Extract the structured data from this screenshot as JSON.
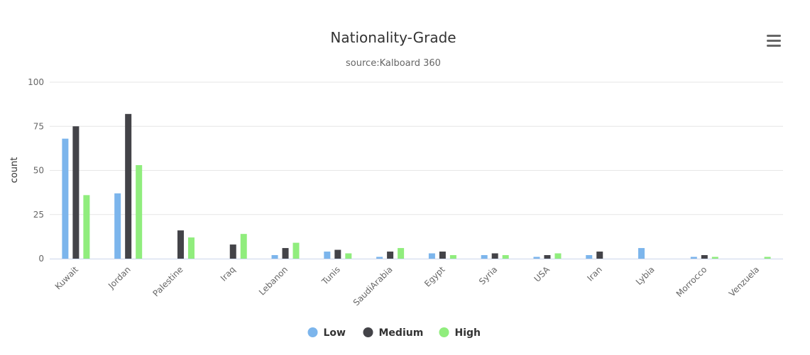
{
  "chart_data": {
    "type": "bar",
    "title": "Nationality-Grade",
    "subtitle": "source:Kalboard 360",
    "xlabel": "",
    "ylabel": "count",
    "ylim": [
      0,
      100
    ],
    "yticks": [
      0,
      25,
      50,
      75,
      100
    ],
    "grid": true,
    "legend": "bottom-center",
    "categories": [
      "Kuwait",
      "Jordan",
      "Palestine",
      "Iraq",
      "Lebanon",
      "Tunis",
      "SaudiArabia",
      "Egypt",
      "Syria",
      "USA",
      "Iran",
      "Lybia",
      "Morrocco",
      "Venzuela"
    ],
    "series": [
      {
        "name": "Low",
        "color": "#7cb5ec",
        "values": [
          68,
          37,
          0,
          0,
          2,
          4,
          1,
          3,
          2,
          1,
          2,
          6,
          1,
          0
        ]
      },
      {
        "name": "Medium",
        "color": "#434348",
        "values": [
          75,
          82,
          16,
          8,
          6,
          5,
          4,
          4,
          3,
          2,
          4,
          0,
          2,
          0
        ]
      },
      {
        "name": "High",
        "color": "#90ed7d",
        "values": [
          36,
          53,
          12,
          14,
          9,
          3,
          6,
          2,
          2,
          3,
          0,
          0,
          1,
          1
        ]
      }
    ]
  },
  "menu": {
    "icon": "hamburger-menu-icon"
  }
}
